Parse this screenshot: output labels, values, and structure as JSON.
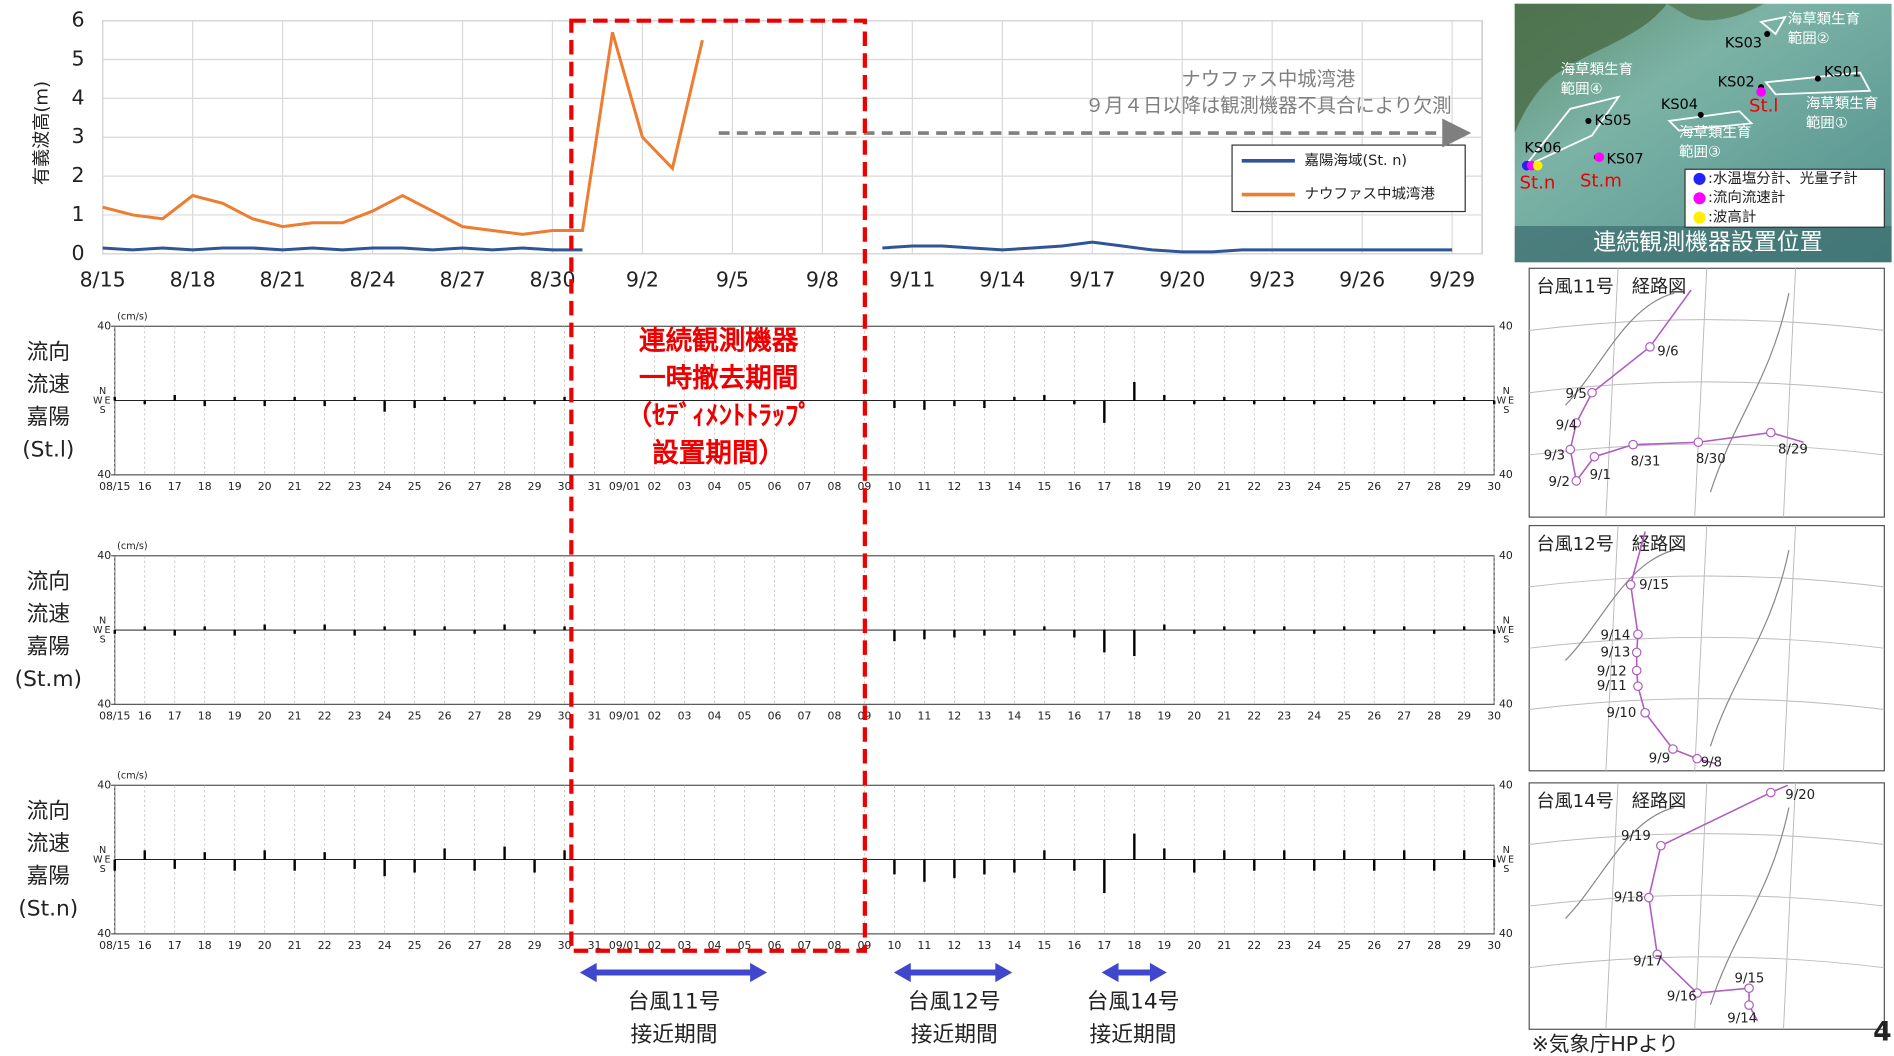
{
  "chart_data": [
    {
      "type": "line",
      "y_label": "有義波高(m)",
      "x": [
        "8/15",
        "8/16",
        "8/17",
        "8/18",
        "8/19",
        "8/20",
        "8/21",
        "8/22",
        "8/23",
        "8/24",
        "8/25",
        "8/26",
        "8/27",
        "8/28",
        "8/29",
        "8/30",
        "8/31",
        "9/1",
        "9/2",
        "9/3",
        "9/4",
        "9/5",
        "9/6",
        "9/7",
        "9/8",
        "9/9",
        "9/10",
        "9/11",
        "9/12",
        "9/13",
        "9/14",
        "9/15",
        "9/16",
        "9/17",
        "9/18",
        "9/19",
        "9/20",
        "9/21",
        "9/22",
        "9/23",
        "9/24",
        "9/25",
        "9/26",
        "9/27",
        "9/28",
        "9/29"
      ],
      "series": [
        {
          "name": "嘉陽海域(St. n)",
          "color": "#2f5597",
          "values": [
            0.15,
            0.1,
            0.15,
            0.1,
            0.15,
            0.15,
            0.1,
            0.15,
            0.1,
            0.15,
            0.15,
            0.1,
            0.15,
            0.1,
            0.15,
            0.1,
            0.1,
            null,
            null,
            null,
            null,
            null,
            null,
            null,
            null,
            null,
            0.15,
            0.2,
            0.2,
            0.15,
            0.1,
            0.15,
            0.2,
            0.3,
            0.2,
            0.1,
            0.05,
            0.05,
            0.1,
            0.1,
            0.1,
            0.1,
            0.1,
            0.1,
            0.1,
            0.1
          ]
        },
        {
          "name": "ナウファス中城湾港",
          "color": "#ed7d31",
          "values": [
            1.2,
            1.0,
            0.9,
            1.5,
            1.3,
            0.9,
            0.7,
            0.8,
            0.8,
            1.1,
            1.5,
            1.1,
            0.7,
            0.6,
            0.5,
            0.6,
            0.6,
            5.7,
            3.0,
            2.2,
            5.5,
            null,
            null,
            null,
            null,
            null,
            null,
            null,
            null,
            null,
            null,
            null,
            null,
            null,
            null,
            null,
            null,
            null,
            null,
            null,
            null,
            null,
            null,
            null,
            null,
            null
          ]
        }
      ],
      "ylim": [
        0,
        6
      ],
      "yticks": [
        0,
        1,
        2,
        3,
        4,
        5,
        6
      ],
      "grid": true,
      "annotation": [
        "ナウファス中城湾港",
        "９月４日以降は観測機器不具合により欠測"
      ]
    },
    {
      "type": "stick",
      "label": [
        "流向",
        "流速",
        "嘉陽",
        "(St.l)"
      ],
      "unit": "(cm/s)",
      "compass": {
        "n": "N",
        "w": "W",
        "e": "E",
        "s": "S"
      },
      "x": [
        "08/15",
        "16",
        "17",
        "18",
        "19",
        "20",
        "21",
        "22",
        "23",
        "24",
        "25",
        "26",
        "27",
        "28",
        "29",
        "30",
        "31",
        "09/01",
        "02",
        "03",
        "04",
        "05",
        "06",
        "07",
        "08",
        "09",
        "10",
        "11",
        "12",
        "13",
        "14",
        "15",
        "16",
        "17",
        "18",
        "19",
        "20",
        "21",
        "22",
        "23",
        "24",
        "25",
        "26",
        "27",
        "28",
        "29",
        "30"
      ],
      "values": [
        2,
        -2,
        3,
        -3,
        2,
        -3,
        2,
        -3,
        2,
        -6,
        -4,
        2,
        -2,
        2,
        -2,
        2,
        null,
        null,
        null,
        null,
        null,
        null,
        null,
        null,
        null,
        null,
        -4,
        -5,
        -3,
        -4,
        2,
        3,
        -2,
        -12,
        10,
        3,
        -2,
        2,
        -2,
        2,
        -2,
        2,
        -2,
        2,
        -2,
        2,
        -2
      ],
      "ylim": [
        -40,
        40
      ],
      "yticks": [
        {
          "value": -40,
          "label": "40"
        },
        40
      ]
    },
    {
      "type": "stick",
      "label": [
        "流向",
        "流速",
        "嘉陽",
        "(St.m)"
      ],
      "unit": "(cm/s)",
      "compass": {
        "n": "N",
        "w": "W",
        "e": "E",
        "s": "S"
      },
      "x": [
        "08/15",
        "16",
        "17",
        "18",
        "19",
        "20",
        "21",
        "22",
        "23",
        "24",
        "25",
        "26",
        "27",
        "28",
        "29",
        "30",
        "31",
        "09/01",
        "02",
        "03",
        "04",
        "05",
        "06",
        "07",
        "08",
        "09",
        "10",
        "11",
        "12",
        "13",
        "14",
        "15",
        "16",
        "17",
        "18",
        "19",
        "20",
        "21",
        "22",
        "23",
        "24",
        "25",
        "26",
        "27",
        "28",
        "29",
        "30"
      ],
      "values": [
        -2,
        2,
        -3,
        2,
        -3,
        3,
        -2,
        3,
        -3,
        2,
        -3,
        2,
        -2,
        3,
        -2,
        2,
        null,
        null,
        null,
        null,
        null,
        null,
        null,
        null,
        null,
        null,
        -6,
        -5,
        -4,
        -3,
        -3,
        2,
        -4,
        -12,
        -14,
        3,
        -2,
        2,
        -2,
        2,
        -2,
        2,
        -2,
        2,
        -2,
        2,
        -2
      ],
      "ylim": [
        -40,
        40
      ],
      "yticks": [
        {
          "value": -40,
          "label": "40"
        },
        40
      ]
    },
    {
      "type": "stick",
      "label": [
        "流向",
        "流速",
        "嘉陽",
        "(St.n)"
      ],
      "unit": "(cm/s)",
      "compass": {
        "n": "N",
        "w": "W",
        "e": "E",
        "s": "S"
      },
      "x": [
        "08/15",
        "16",
        "17",
        "18",
        "19",
        "20",
        "21",
        "22",
        "23",
        "24",
        "25",
        "26",
        "27",
        "28",
        "29",
        "30",
        "31",
        "09/01",
        "02",
        "03",
        "04",
        "05",
        "06",
        "07",
        "08",
        "09",
        "10",
        "11",
        "12",
        "13",
        "14",
        "15",
        "16",
        "17",
        "18",
        "19",
        "20",
        "21",
        "22",
        "23",
        "24",
        "25",
        "26",
        "27",
        "28",
        "29",
        "30"
      ],
      "values": [
        -6,
        5,
        -5,
        4,
        -6,
        5,
        -6,
        4,
        -5,
        -9,
        -7,
        6,
        -6,
        7,
        -7,
        5,
        null,
        null,
        null,
        null,
        null,
        null,
        null,
        null,
        null,
        null,
        -8,
        -12,
        -10,
        -8,
        -7,
        5,
        -6,
        -18,
        14,
        6,
        -7,
        5,
        -6,
        5,
        -6,
        5,
        -6,
        5,
        -6,
        5,
        -4
      ],
      "ylim": [
        -40,
        40
      ],
      "yticks": [
        {
          "value": -40,
          "label": "40"
        },
        40
      ]
    }
  ],
  "removal_period": [
    "連続観測機器",
    "一時撤去期間",
    "（ｾﾃﾞｨﾒﾝﾄﾄﾗｯﾌﾟ",
    "設置期間）"
  ],
  "approach_periods": [
    [
      "台風11号",
      "接近期間"
    ],
    [
      "台風12号",
      "接近期間"
    ],
    [
      "台風14号",
      "接近期間"
    ]
  ],
  "location_map": {
    "title": "連続観測機器設置位置",
    "stations": [
      "KS01",
      "KS02",
      "KS03",
      "KS04",
      "KS05",
      "KS06",
      "KS07"
    ],
    "instruments": [
      "St.l",
      "St.m",
      "St.n"
    ],
    "areas": [
      [
        "海草類生育",
        "範囲①"
      ],
      [
        "海草類生育",
        "範囲②"
      ],
      [
        "海草類生育",
        "範囲③"
      ],
      [
        "海草類生育",
        "範囲④"
      ]
    ],
    "legend": [
      ":水温塩分計、光量子計",
      ":流向流速計",
      ":波高計"
    ]
  },
  "typhoon_maps": [
    {
      "title": "台風11号　経路図",
      "dates": [
        "8/29",
        "8/30",
        "8/31",
        "9/1",
        "9/2",
        "9/3",
        "9/4",
        "9/5",
        "9/6"
      ]
    },
    {
      "title": "台風12号　経路図",
      "dates": [
        "9/8",
        "9/9",
        "9/10",
        "9/11",
        "9/12",
        "9/13",
        "9/14",
        "9/15"
      ]
    },
    {
      "title": "台風14号　経路図",
      "dates": [
        "9/14",
        "9/15",
        "9/16",
        "9/17",
        "9/18",
        "9/19",
        "9/20"
      ]
    }
  ],
  "source_note": "※気象庁HPより",
  "page_number": "4"
}
